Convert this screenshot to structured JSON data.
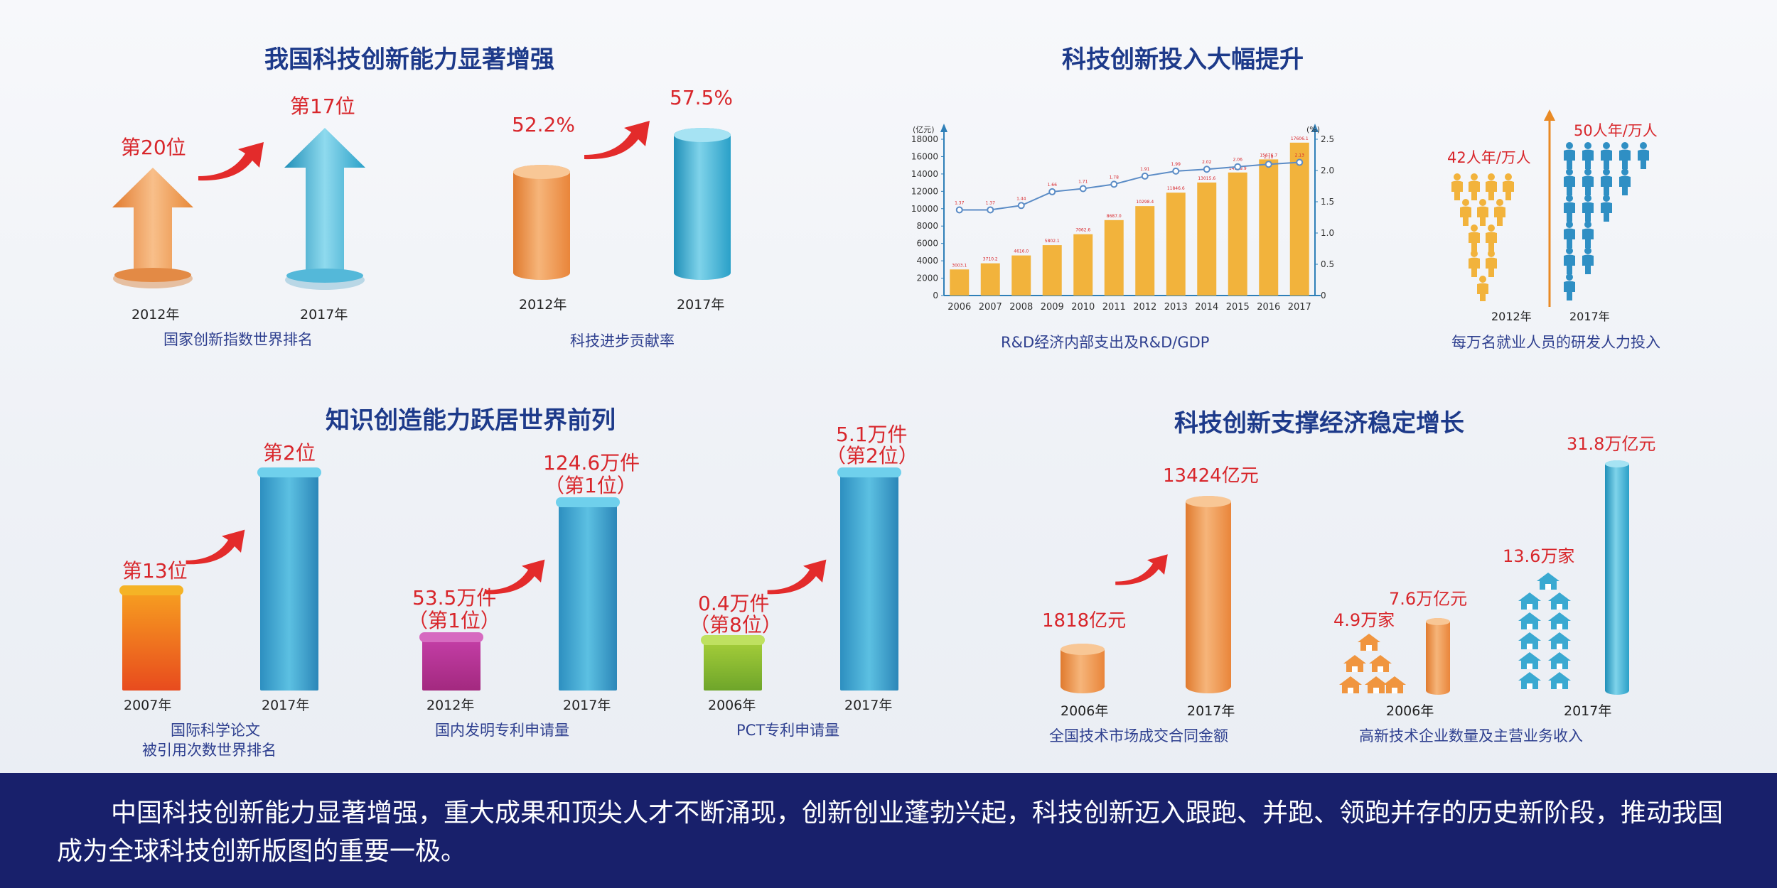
{
  "sections": {
    "innovation": {
      "title": "我国科技创新能力显著增强",
      "rank_chart": {
        "caption": "国家创新指数世界排名",
        "items": [
          {
            "year": "2012年",
            "label": "第20位",
            "rank": 20
          },
          {
            "year": "2017年",
            "label": "第17位",
            "rank": 17
          }
        ]
      },
      "contribution_chart": {
        "caption": "科技进步贡献率",
        "items": [
          {
            "year": "2012年",
            "label": "52.2%",
            "value": 52.2
          },
          {
            "year": "2017年",
            "label": "57.5%",
            "value": 57.5
          }
        ]
      }
    },
    "investment": {
      "title": "科技创新投入大幅提升",
      "rd_caption": "R&D经济内部支出及R&D/GDP",
      "people_chart": {
        "caption": "每万名就业人员的研发人力投入",
        "items": [
          {
            "year": "2012年",
            "label": "42人年/万人",
            "value": 42
          },
          {
            "year": "2017年",
            "label": "50人年/万人",
            "value": 50
          }
        ]
      }
    },
    "knowledge": {
      "title": "知识创造能力跃居世界前列",
      "papers": {
        "caption_line1": "国际科学论文",
        "caption_line2": "被引用次数世界排名",
        "items": [
          {
            "year": "2007年",
            "label": "第13位"
          },
          {
            "year": "2017年",
            "label": "第2位"
          }
        ]
      },
      "patents": {
        "caption": "国内发明专利申请量",
        "items": [
          {
            "year": "2012年",
            "label1": "53.5万件",
            "label2": "（第1位）"
          },
          {
            "year": "2017年",
            "label1": "124.6万件",
            "label2": "（第1位）"
          }
        ]
      },
      "pct": {
        "caption": "PCT专利申请量",
        "items": [
          {
            "year": "2006年",
            "label1": "0.4万件",
            "label2": "（第8位）"
          },
          {
            "year": "2017年",
            "label1": "5.1万件",
            "label2": "（第2位）"
          }
        ]
      }
    },
    "economy": {
      "title": "科技创新支撑经济稳定增长",
      "market": {
        "caption": "全国技术市场成交合同金额",
        "items": [
          {
            "year": "2006年",
            "label": "1818亿元",
            "value": 1818
          },
          {
            "year": "2017年",
            "label": "13424亿元",
            "value": 13424
          }
        ]
      },
      "hightech": {
        "caption": "高新技术企业数量及主营业务收入",
        "year_2006": "2006年",
        "year_2017": "2017年",
        "firms_2006": "4.9万家",
        "revenue_2006": "7.6万亿元",
        "firms_2017": "13.6万家",
        "revenue_2017": "31.8万亿元"
      }
    }
  },
  "chart_data": [
    {
      "type": "bar",
      "title": "",
      "categories": [
        "2006",
        "2007",
        "2008",
        "2009",
        "2010",
        "2011",
        "2012",
        "2013",
        "2014",
        "2015",
        "2016",
        "2017"
      ],
      "series": [
        {
          "values": [
            3003.1,
            3710.2,
            4616.0,
            5802.1,
            7062.6,
            8687.0,
            10298.4,
            11846.6,
            13015.6,
            14169.9,
            15676.7,
            17606.1
          ]
        },
        {
          "values": [
            1.37,
            1.37,
            1.44,
            1.66,
            1.71,
            1.78,
            1.91,
            1.99,
            2.02,
            2.06,
            2.1,
            2.13
          ]
        }
      ],
      "left_axis": {
        "unit": "(亿元)",
        "ticks": [
          "0",
          "2000",
          "4000",
          "6000",
          "8000",
          "10000",
          "12000",
          "14000",
          "16000",
          "18000"
        ],
        "ylim": [
          0,
          18000
        ]
      },
      "right_axis": {
        "unit": "(%)",
        "ticks": [
          "0",
          "0.50",
          "1.00",
          "1.50",
          "2.00",
          "2.50"
        ],
        "ylim": [
          0,
          2.5
        ]
      },
      "colors": {
        "bar": "#f2b33c",
        "line": "#5b8cc6",
        "axis": "#2f7fb8"
      }
    }
  ],
  "footer": {
    "text": "中国科技创新能力显著增强，重大成果和顶尖人才不断涌现，创新创业蓬勃兴起，科技创新迈入跟跑、并跑、领跑并存的历史新阶段，推动我国成为全球科技创新版图的重要一极。"
  },
  "colors": {
    "title": "#1d3a8a",
    "value": "#d8262b",
    "orange": "#f0953f",
    "blue": "#3aa9d1",
    "footer_bg": "#18206b"
  }
}
